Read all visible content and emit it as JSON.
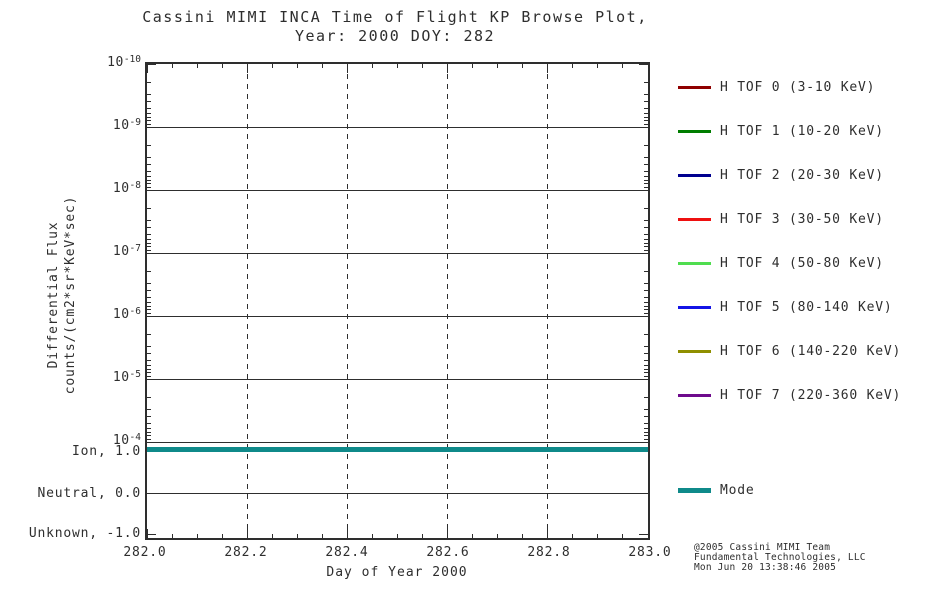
{
  "title": {
    "line1": "Cassini MIMI INCA Time of Flight KP Browse Plot,",
    "line2": "Year: 2000 DOY: 282"
  },
  "y_axis": {
    "label_line1": "Differential Flux",
    "label_line2": "counts/(cm2*sr*KeV*sec)",
    "ticks": [
      {
        "base": "10",
        "exp": "-10"
      },
      {
        "base": "10",
        "exp": "-9"
      },
      {
        "base": "10",
        "exp": "-8"
      },
      {
        "base": "10",
        "exp": "-7"
      },
      {
        "base": "10",
        "exp": "-6"
      },
      {
        "base": "10",
        "exp": "-5"
      },
      {
        "base": "10",
        "exp": "-4"
      }
    ],
    "mode_tick_labels": [
      "Ion, 1.0",
      "Neutral, 0.0",
      "Unknown, -1.0"
    ]
  },
  "x_axis": {
    "label": "Day of Year 2000",
    "ticks": [
      "282.0",
      "282.2",
      "282.4",
      "282.6",
      "282.8",
      "283.0"
    ]
  },
  "legend": {
    "items": [
      {
        "label": "H TOF 0 (3-10 KeV)",
        "color": "#8f0000"
      },
      {
        "label": "H TOF 1 (10-20 KeV)",
        "color": "#007d00"
      },
      {
        "label": "H TOF 2 (20-30 KeV)",
        "color": "#00008f"
      },
      {
        "label": "H TOF 3 (30-50 KeV)",
        "color": "#ee1010"
      },
      {
        "label": "H TOF 4 (50-80 KeV)",
        "color": "#4fdd4f"
      },
      {
        "label": "H TOF 5 (80-140 KeV)",
        "color": "#1414e6"
      },
      {
        "label": "H TOF 6 (140-220 KeV)",
        "color": "#8f8f00"
      },
      {
        "label": "H TOF 7 (220-360 KeV)",
        "color": "#6e0a8c"
      }
    ],
    "mode": {
      "label": "Mode",
      "color": "#0f8a8a"
    }
  },
  "footer": {
    "line1": "@2005 Cassini MIMI Team",
    "line2": "Fundamental Technologies, LLC",
    "line3": "Mon Jun 20 13:38:46 2005"
  },
  "chart_data": {
    "type": "line",
    "title": "Cassini MIMI INCA Time of Flight KP Browse Plot, Year: 2000 DOY: 282",
    "xlabel": "Day of Year 2000",
    "ylabel": "Differential Flux counts/(cm2*sr*KeV*sec)",
    "xlim": [
      282.0,
      283.0
    ],
    "x_ticks": [
      282.0,
      282.2,
      282.4,
      282.6,
      282.8,
      283.0
    ],
    "y_scale": "log",
    "y_tick_exponents": [
      -10,
      -9,
      -8,
      -7,
      -6,
      -5,
      -4
    ],
    "y_axis_note": "log flux axis labeled 10^-10 (top) down to 10^-4; secondary mode axis below: Ion=1.0, Neutral=0.0, Unknown=-1.0",
    "grid": {
      "horizontal": "solid",
      "vertical": "dashed"
    },
    "legend_position": "right",
    "series": [
      {
        "name": "H TOF 0 (3-10 KeV)",
        "color": "#8f0000",
        "x": [],
        "y": [],
        "note": "no data visible"
      },
      {
        "name": "H TOF 1 (10-20 KeV)",
        "color": "#007d00",
        "x": [],
        "y": [],
        "note": "no data visible"
      },
      {
        "name": "H TOF 2 (20-30 KeV)",
        "color": "#00008f",
        "x": [],
        "y": [],
        "note": "no data visible"
      },
      {
        "name": "H TOF 3 (30-50 KeV)",
        "color": "#ee1010",
        "x": [],
        "y": [],
        "note": "no data visible"
      },
      {
        "name": "H TOF 4 (50-80 KeV)",
        "color": "#4fdd4f",
        "x": [],
        "y": [],
        "note": "no data visible"
      },
      {
        "name": "H TOF 5 (80-140 KeV)",
        "color": "#1414e6",
        "x": [],
        "y": [],
        "note": "no data visible"
      },
      {
        "name": "H TOF 6 (140-220 KeV)",
        "color": "#8f8f00",
        "x": [],
        "y": [],
        "note": "no data visible"
      },
      {
        "name": "H TOF 7 (220-360 KeV)",
        "color": "#6e0a8c",
        "x": [],
        "y": [],
        "note": "no data visible"
      },
      {
        "name": "Mode",
        "color": "#0f8a8a",
        "x": [
          282.0,
          283.0
        ],
        "y": [
          1.0,
          1.0
        ],
        "note": "thick constant line at Ion (1.0) across entire interval"
      }
    ]
  }
}
